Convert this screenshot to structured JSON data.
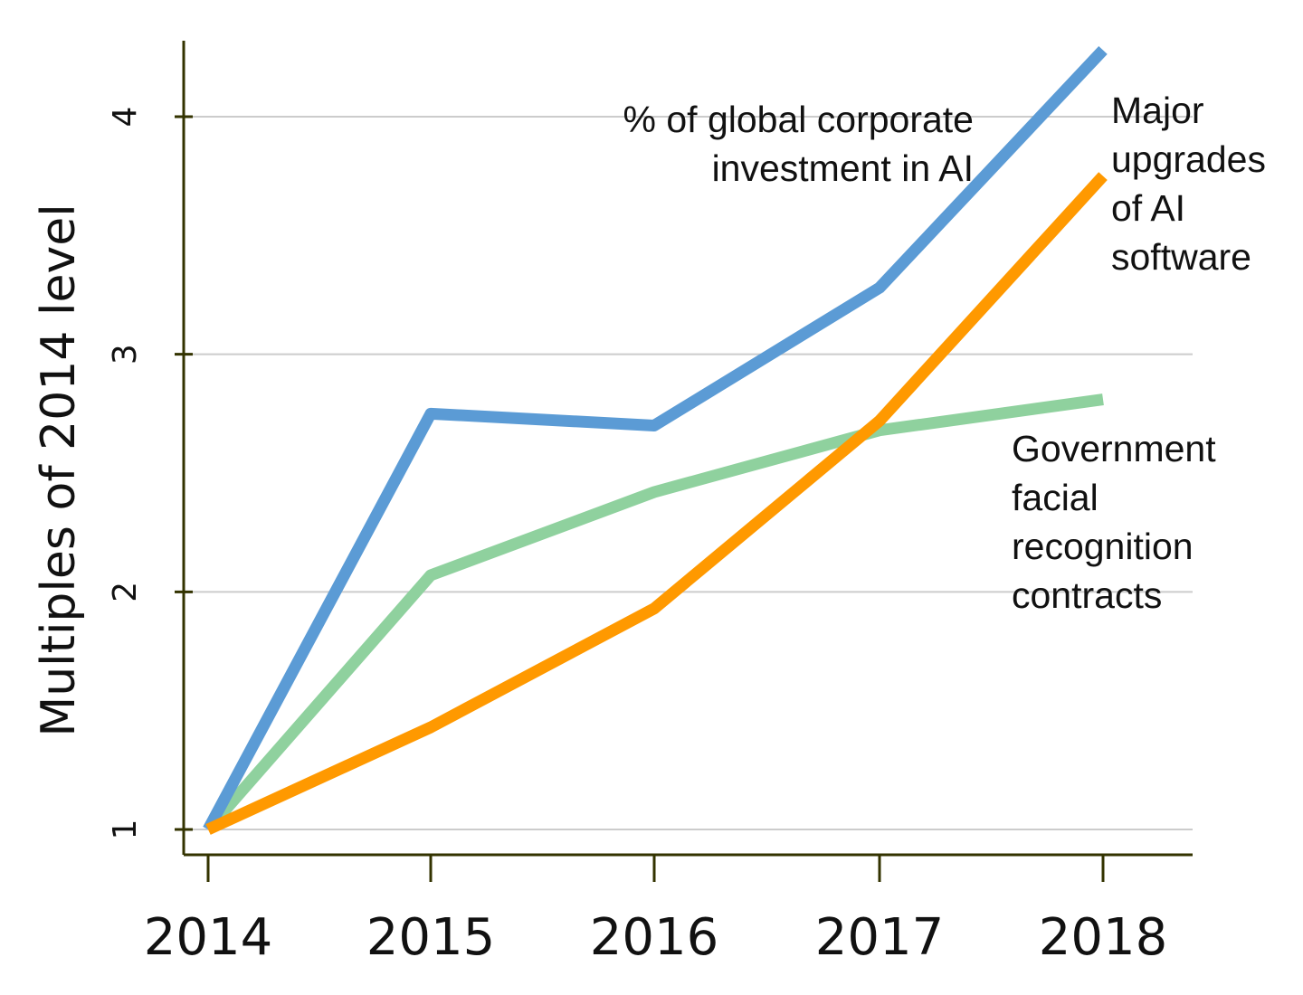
{
  "chart_data": {
    "type": "line",
    "title": "",
    "xlabel": "",
    "ylabel": "Multiples of 2014 level",
    "x": [
      2014,
      2015,
      2016,
      2017,
      2018
    ],
    "xticks": [
      "2014",
      "2015",
      "2016",
      "2017",
      "2018"
    ],
    "yticks": [
      "1",
      "2",
      "3",
      "4"
    ],
    "ylim": [
      0.9,
      4.33
    ],
    "grid": "horizontal",
    "series": [
      {
        "name": "Government facial recognition contracts",
        "label_lines": [
          "Government",
          "facial",
          "recognition",
          "contracts"
        ],
        "color": "#8fd19e",
        "values": [
          1.0,
          2.07,
          2.42,
          2.68,
          2.81
        ]
      },
      {
        "name": "% of global corporate investment in AI",
        "label_lines": [
          "% of global corporate",
          "investment in AI"
        ],
        "color": "#5b9bd5",
        "values": [
          1.0,
          2.75,
          2.7,
          3.28,
          4.28
        ]
      },
      {
        "name": "Major upgrades of AI software",
        "label_lines": [
          "Major",
          "upgrades",
          "of AI",
          "software"
        ],
        "color": "#ff9900",
        "values": [
          1.0,
          1.43,
          1.93,
          2.72,
          3.75
        ]
      }
    ]
  }
}
